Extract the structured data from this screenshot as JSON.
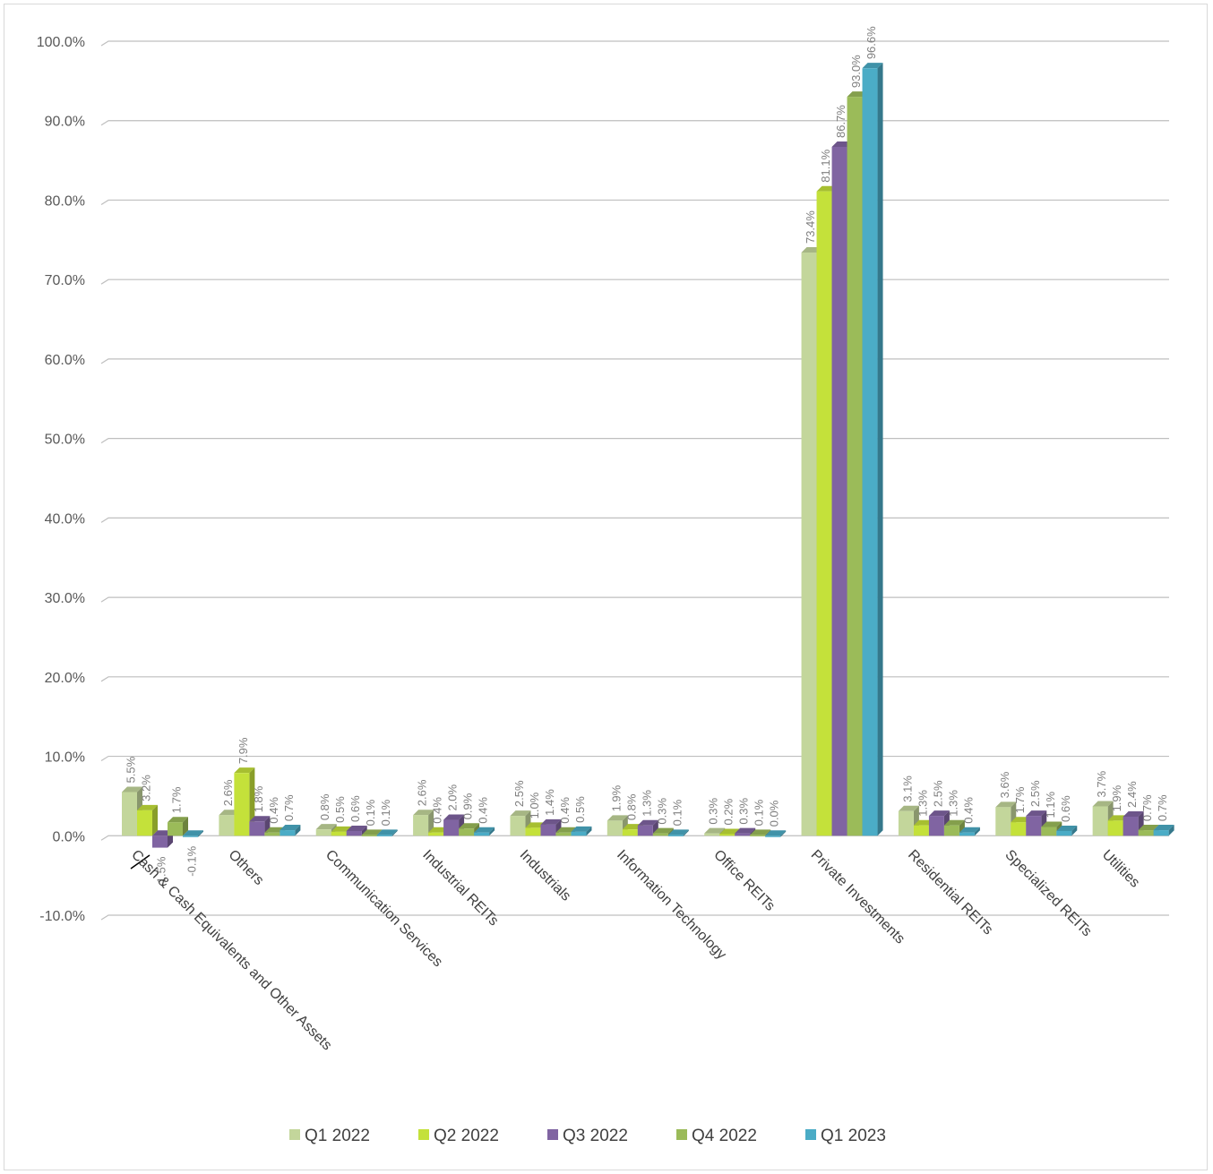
{
  "chart_data": {
    "type": "bar",
    "title": "",
    "xlabel": "",
    "ylabel": "",
    "ylim": [
      -10,
      100
    ],
    "ytick_step": 10,
    "ytick_labels": [
      "-10.0%",
      "0.0%",
      "10.0%",
      "20.0%",
      "30.0%",
      "40.0%",
      "50.0%",
      "60.0%",
      "70.0%",
      "80.0%",
      "90.0%",
      "100.0%"
    ],
    "grid": true,
    "legend_position": "bottom",
    "categories": [
      "Cash & Cash Equivalents and Other Assets",
      "Others",
      "Communication Services",
      "Industrial REITs",
      "Industrials",
      "Information Technology",
      "Office REITs",
      "Private Investments",
      "Residential REITs",
      "Specialized REITs",
      "Utilities"
    ],
    "series": [
      {
        "name": "Q1 2022",
        "color": "#c3d69b",
        "values": [
          5.5,
          2.6,
          0.8,
          2.6,
          2.5,
          1.9,
          0.3,
          73.4,
          3.1,
          3.6,
          3.7
        ],
        "labels": [
          "5.5%",
          "2.6%",
          "0.8%",
          "2.6%",
          "2.5%",
          "1.9%",
          "0.3%",
          "73.4%",
          "3.1%",
          "3.6%",
          "3.7%"
        ]
      },
      {
        "name": "Q2 2022",
        "color": "#c4e13a",
        "values": [
          3.2,
          7.9,
          0.5,
          0.4,
          1.0,
          0.8,
          0.2,
          81.1,
          1.3,
          1.7,
          1.9
        ],
        "labels": [
          "3.2%",
          "7.9%",
          "0.5%",
          "0.4%",
          "1.0%",
          "0.8%",
          "0.2%",
          "81.1%",
          "1.3%",
          "1.7%",
          "1.9%"
        ]
      },
      {
        "name": "Q3 2022",
        "color": "#8064a2",
        "values": [
          -1.5,
          1.8,
          0.6,
          2.0,
          1.4,
          1.3,
          0.3,
          86.7,
          2.5,
          2.5,
          2.4
        ],
        "labels": [
          "-1.5%",
          "1.8%",
          "0.6%",
          "2.0%",
          "1.4%",
          "1.3%",
          "0.3%",
          "86.7%",
          "2.5%",
          "2.5%",
          "2.4%"
        ]
      },
      {
        "name": "Q4 2022",
        "color": "#9bbb59",
        "values": [
          1.7,
          0.4,
          0.1,
          0.9,
          0.4,
          0.3,
          0.1,
          93.0,
          1.3,
          1.1,
          0.7
        ],
        "labels": [
          "1.7%",
          "0.4%",
          "0.1%",
          "0.9%",
          "0.4%",
          "0.3%",
          "0.1%",
          "93.0%",
          "1.3%",
          "1.1%",
          "0.7%"
        ]
      },
      {
        "name": "Q1 2023",
        "color": "#4bacc6",
        "values": [
          -0.1,
          0.7,
          0.1,
          0.4,
          0.5,
          0.1,
          0.0,
          96.6,
          0.4,
          0.6,
          0.7
        ],
        "labels": [
          "-0.1%",
          "0.7%",
          "0.1%",
          "0.4%",
          "0.5%",
          "0.1%",
          "0.0%",
          "96.6%",
          "0.4%",
          "0.6%",
          "0.7%"
        ]
      }
    ]
  }
}
